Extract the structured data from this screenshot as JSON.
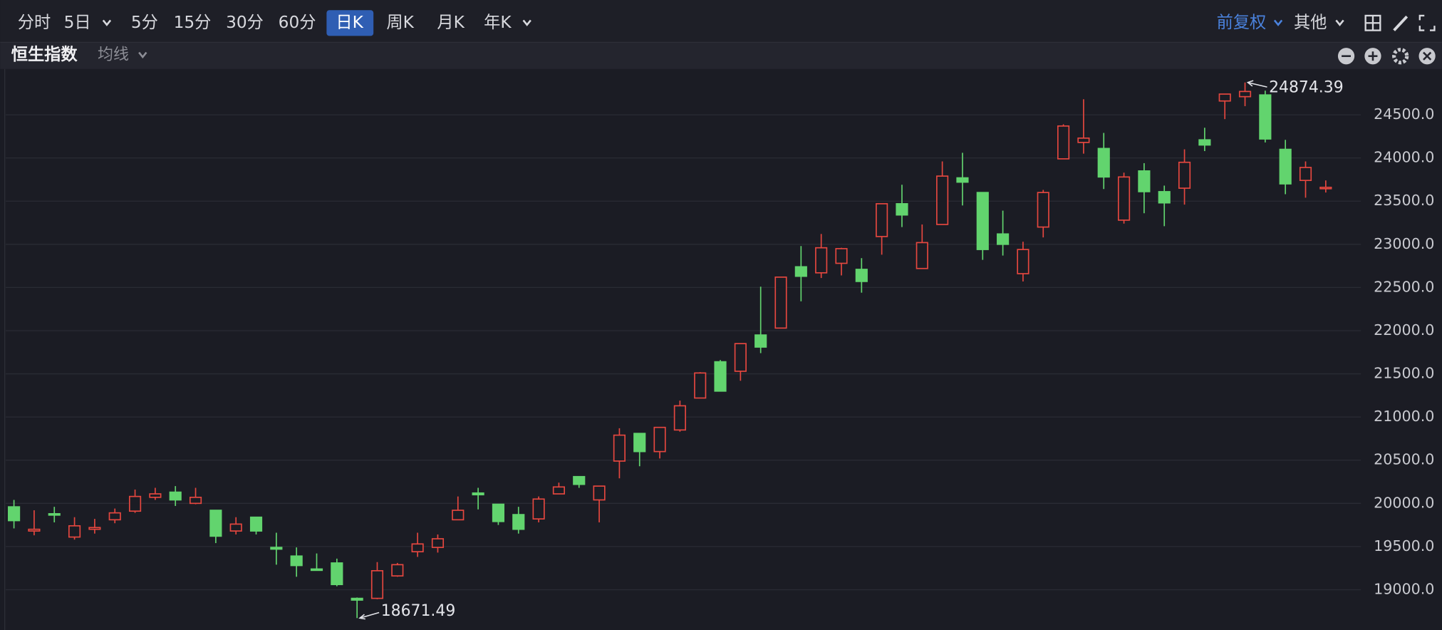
{
  "toolbar": {
    "tabs": [
      "分时",
      "5日",
      "5分",
      "15分",
      "30分",
      "60分",
      "日K",
      "周K",
      "月K",
      "年K"
    ],
    "adjust": "前复权",
    "other": "其他"
  },
  "panel": {
    "title": "恒生指数",
    "ma": "均线"
  },
  "chart_data": {
    "type": "candlestick",
    "open": [
      19960,
      19680,
      19880,
      19610,
      19700,
      19810,
      19910,
      20070,
      20130,
      20000,
      19920,
      19680,
      19840,
      19490,
      19390,
      19240,
      19310,
      18900,
      18900,
      19160,
      19440,
      19490,
      19810,
      20120,
      19990,
      19870,
      19820,
      20110,
      20310,
      20040,
      20490,
      20810,
      20600,
      20850,
      21220,
      21640,
      21530,
      21950,
      22030,
      22740,
      22670,
      22780,
      22710,
      23090,
      23470,
      22720,
      23230,
      23770,
      23600,
      23120,
      22660,
      23200,
      23990,
      24180,
      24110,
      23280,
      23850,
      23610,
      23650,
      24210,
      24660,
      24710,
      24730,
      24100,
      23740,
      23650
    ],
    "high": [
      20040,
      19920,
      19960,
      19840,
      19820,
      19940,
      20160,
      20180,
      20200,
      20180,
      19920,
      19840,
      19840,
      19660,
      19490,
      19420,
      19360,
      18910,
      19320,
      19310,
      19660,
      19640,
      20080,
      20180,
      19990,
      19960,
      20080,
      20240,
      20310,
      20200,
      20870,
      20810,
      20880,
      21190,
      21520,
      21660,
      21850,
      22510,
      22620,
      22980,
      23120,
      22960,
      22840,
      23470,
      23690,
      23230,
      23960,
      24060,
      23600,
      23390,
      23030,
      23630,
      24390,
      24680,
      24290,
      23830,
      23940,
      23680,
      24100,
      24350,
      24740,
      24874.39,
      24780,
      24210,
      23960,
      23740
    ],
    "low": [
      19710,
      19630,
      19780,
      19580,
      19650,
      19770,
      19890,
      20040,
      19970,
      19990,
      19540,
      19640,
      19640,
      19290,
      19150,
      19220,
      19040,
      18671.49,
      18890,
      19150,
      19380,
      19430,
      19810,
      19930,
      19750,
      19650,
      19780,
      20110,
      20180,
      19780,
      20290,
      20430,
      20520,
      20830,
      21220,
      21300,
      21420,
      21740,
      22030,
      22340,
      22610,
      22640,
      22440,
      22880,
      23200,
      22720,
      23230,
      23450,
      22820,
      22870,
      22570,
      23080,
      23990,
      24050,
      23640,
      23240,
      23360,
      23210,
      23460,
      24080,
      24450,
      24600,
      24180,
      23580,
      23540,
      23600
    ],
    "close": [
      19800,
      19700,
      19870,
      19740,
      19720,
      19890,
      20080,
      20110,
      20040,
      20070,
      19620,
      19760,
      19680,
      19470,
      19280,
      19230,
      19060,
      18880,
      19220,
      19290,
      19530,
      19590,
      19920,
      20100,
      19790,
      19700,
      20050,
      20190,
      20220,
      20200,
      20790,
      20600,
      20880,
      21130,
      21510,
      21300,
      21850,
      21810,
      22620,
      22630,
      22960,
      22950,
      22570,
      23470,
      23340,
      23020,
      23790,
      23720,
      22940,
      23000,
      22940,
      23600,
      24370,
      24230,
      23780,
      23780,
      23610,
      23480,
      23950,
      24150,
      24740,
      24770,
      24220,
      23700,
      23890,
      23660
    ],
    "up_color": "#e5473f",
    "down_color": "#62d46e",
    "ylim": [
      18640,
      25020
    ],
    "yticks": [
      {
        "value": 19000,
        "label": "19000.0"
      },
      {
        "value": 19500,
        "label": "19500.0"
      },
      {
        "value": 20000,
        "label": "20000.0"
      },
      {
        "value": 20500,
        "label": "20500.0"
      },
      {
        "value": 21000,
        "label": "21000.0"
      },
      {
        "value": 21500,
        "label": "21500.0"
      },
      {
        "value": 22000,
        "label": "22000.0"
      },
      {
        "value": 22500,
        "label": "22500.0"
      },
      {
        "value": 23000,
        "label": "23000.0"
      },
      {
        "value": 23500,
        "label": "23500.0"
      },
      {
        "value": 24000,
        "label": "24000.0"
      },
      {
        "value": 24500,
        "label": "24500.0"
      }
    ],
    "grid": true
  }
}
